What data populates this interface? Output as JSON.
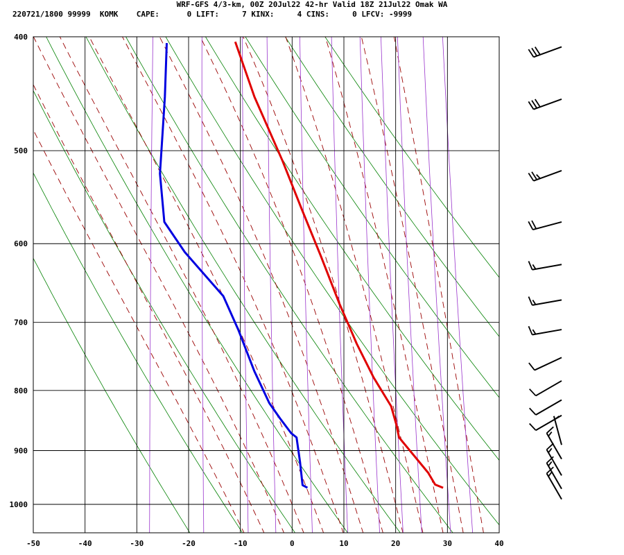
{
  "header": {
    "title": "WRF-GFS 4/3-km, 00Z 20Jul22 42-hr Valid 18Z 21Jul22 Omak WA",
    "stats": "220721/1800 99999  KOMK    CAPE:      0 LIFT:     7 KINX:     4 CINS:     0 LFCV: -9999"
  },
  "chart_data": {
    "type": "line",
    "title": "WRF-GFS 4/3-km, 00Z 20Jul22 42-hr Valid 18Z 21Jul22 Omak WA",
    "xlabel": "",
    "ylabel": "",
    "xlim": [
      -50,
      40
    ],
    "ylim": [
      1040,
      400
    ],
    "y_scale": "log-pressure (skew-T)",
    "x_ticks": [
      "-50",
      "-40",
      "-30",
      "-20",
      "-10",
      "0",
      "10",
      "20",
      "30",
      "40"
    ],
    "y_ticks": [
      "400",
      "500",
      "600",
      "700",
      "800",
      "900",
      "1000"
    ],
    "grid": true,
    "series": [
      {
        "color": "#e00000",
        "points": [
          [
            28.8,
            968
          ],
          [
            27.2,
            962
          ],
          [
            25.6,
            940
          ],
          [
            19.2,
            877
          ],
          [
            18.4,
            855
          ],
          [
            17.0,
            825
          ],
          [
            13.0,
            780
          ],
          [
            9.0,
            730
          ],
          [
            4.8,
            675
          ],
          [
            0.2,
            615
          ],
          [
            -4.6,
            560
          ],
          [
            -9.3,
            510
          ],
          [
            -16.1,
            450
          ],
          [
            -21.0,
            404
          ]
        ]
      },
      {
        "color": "#0000e0",
        "points": [
          [
            2.6,
            968
          ],
          [
            1.6,
            963
          ],
          [
            0.6,
            920
          ],
          [
            -0.6,
            877
          ],
          [
            -1.7,
            870
          ],
          [
            -4.2,
            845
          ],
          [
            -6.6,
            820
          ],
          [
            -10.2,
            770
          ],
          [
            -14.2,
            710
          ],
          [
            -17.8,
            665
          ],
          [
            -26.2,
            610
          ],
          [
            -30.8,
            575
          ],
          [
            -32.7,
            523
          ],
          [
            -33.0,
            490
          ],
          [
            -33.4,
            450
          ],
          [
            -34.2,
            405
          ]
        ]
      }
    ],
    "wind_barbs": [
      {
        "p": 408,
        "dir": 250,
        "spd": 30
      },
      {
        "p": 452,
        "dir": 250,
        "spd": 30
      },
      {
        "p": 520,
        "dir": 250,
        "spd": 25
      },
      {
        "p": 575,
        "dir": 255,
        "spd": 20
      },
      {
        "p": 625,
        "dir": 260,
        "spd": 15
      },
      {
        "p": 670,
        "dir": 260,
        "spd": 15
      },
      {
        "p": 710,
        "dir": 260,
        "spd": 15
      },
      {
        "p": 750,
        "dir": 245,
        "spd": 10
      },
      {
        "p": 785,
        "dir": 240,
        "spd": 10
      },
      {
        "p": 815,
        "dir": 240,
        "spd": 10
      },
      {
        "p": 840,
        "dir": 240,
        "spd": 10
      },
      {
        "p": 890,
        "dir": 345,
        "spd": 5
      },
      {
        "p": 915,
        "dir": 330,
        "spd": 15
      },
      {
        "p": 945,
        "dir": 330,
        "spd": 15
      },
      {
        "p": 970,
        "dir": 330,
        "spd": 15
      },
      {
        "p": 990,
        "dir": 330,
        "spd": 15
      }
    ],
    "background_lines": {
      "dry_adiabat_thetas_K": [
        250,
        260,
        270,
        280,
        290,
        300,
        310,
        320,
        330,
        340,
        350
      ],
      "moist_adiabat_start_C": [
        -12,
        -8,
        -4,
        0,
        4,
        8,
        12,
        16,
        20,
        24,
        28,
        32,
        36
      ],
      "mixing_ratios_gkg": [
        0.4,
        1,
        2,
        3,
        5,
        8,
        12,
        16,
        20,
        28,
        36
      ]
    },
    "colors": {
      "temperature": "#e00000",
      "dewpoint": "#0000e0",
      "isotherm": "#000000",
      "dry_adiabat": "#008000",
      "moist_adiabat": "#9a0000",
      "mixing_ratio": "#9933cc"
    }
  }
}
